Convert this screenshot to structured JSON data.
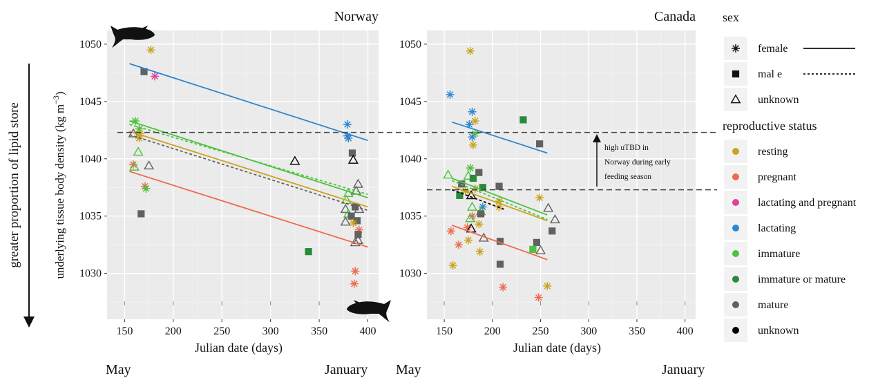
{
  "page": {
    "side_label": "greater proportion of lipid store",
    "ylabel": "underlying tissue body density (kg m",
    "ylabel_sup": "−3",
    "ylabel_close": ")",
    "annotation": [
      "high uTBD in",
      "Norway during early",
      "feeding season"
    ],
    "month_labels": {
      "norway_start": "May",
      "norway_end": "January",
      "canada_start": "May",
      "canada_end": "January"
    }
  },
  "legend": {
    "sex_title": "sex",
    "sex_items": [
      {
        "label": "female",
        "shape": "asterisk",
        "line": "solid"
      },
      {
        "label": "mal e",
        "shape": "square",
        "line": "dotted"
      },
      {
        "label": "unknown",
        "shape": "triangle-open",
        "line": "none"
      }
    ],
    "status_title": "reproductive status",
    "status_items": [
      {
        "label": "resting",
        "color": "#C9A31C"
      },
      {
        "label": "pregnant",
        "color": "#EE6A50"
      },
      {
        "label": "lactating and pregnant",
        "color": "#E2409A"
      },
      {
        "label": "lactating",
        "color": "#2D86D0"
      },
      {
        "label": "immature",
        "color": "#4DC23E"
      },
      {
        "label": "immature or mature",
        "color": "#2A8A3A"
      },
      {
        "label": "mature",
        "color": "#616161"
      },
      {
        "label": "unknown",
        "color": "#000000"
      }
    ]
  },
  "reference_lines": [
    1042.3,
    1037.3
  ],
  "chart_data": [
    {
      "type": "scatter",
      "title": "Norway",
      "xlabel": "Julian date (days)",
      "ylabel": "underlying tissue body density (kg m−3)",
      "xlim": [
        132,
        411
      ],
      "ylim": [
        1026.0,
        1051.2
      ],
      "xticks": [
        150,
        200,
        250,
        300,
        350,
        400
      ],
      "yticks": [
        1030,
        1035,
        1040,
        1045,
        1050
      ],
      "points": [
        {
          "x": 177,
          "y": 1049.5,
          "status": "resting",
          "shape": "asterisk"
        },
        {
          "x": 170,
          "y": 1047.6,
          "status": "mature",
          "shape": "square"
        },
        {
          "x": 181,
          "y": 1047.2,
          "status": "lactating and pregnant",
          "shape": "asterisk"
        },
        {
          "x": 161,
          "y": 1043.3,
          "status": "immature",
          "shape": "asterisk"
        },
        {
          "x": 165,
          "y": 1042.6,
          "status": "immature",
          "shape": "asterisk"
        },
        {
          "x": 166,
          "y": 1042.2,
          "status": "resting",
          "shape": "asterisk"
        },
        {
          "x": 159,
          "y": 1042.2,
          "status": "mature",
          "shape": "triangle-open"
        },
        {
          "x": 165,
          "y": 1041.8,
          "status": "resting",
          "shape": "asterisk"
        },
        {
          "x": 164,
          "y": 1040.6,
          "status": "immature",
          "shape": "triangle-open"
        },
        {
          "x": 159,
          "y": 1039.5,
          "status": "pregnant",
          "shape": "asterisk"
        },
        {
          "x": 160,
          "y": 1039.3,
          "status": "immature",
          "shape": "triangle-open"
        },
        {
          "x": 175,
          "y": 1039.4,
          "status": "mature",
          "shape": "triangle-open"
        },
        {
          "x": 171,
          "y": 1037.6,
          "status": "pregnant",
          "shape": "asterisk"
        },
        {
          "x": 172,
          "y": 1037.4,
          "status": "immature",
          "shape": "asterisk"
        },
        {
          "x": 167,
          "y": 1035.2,
          "status": "mature",
          "shape": "square"
        },
        {
          "x": 325,
          "y": 1039.8,
          "status": "unknown",
          "shape": "triangle-open"
        },
        {
          "x": 339,
          "y": 1031.9,
          "status": "immature or mature",
          "shape": "square"
        },
        {
          "x": 379,
          "y": 1043.0,
          "status": "lactating",
          "shape": "asterisk"
        },
        {
          "x": 379,
          "y": 1042.0,
          "status": "lactating",
          "shape": "asterisk"
        },
        {
          "x": 380,
          "y": 1041.8,
          "status": "lactating",
          "shape": "asterisk"
        },
        {
          "x": 384,
          "y": 1040.5,
          "status": "mature",
          "shape": "square"
        },
        {
          "x": 385,
          "y": 1039.9,
          "status": "unknown",
          "shape": "triangle-open"
        },
        {
          "x": 390,
          "y": 1037.8,
          "status": "mature",
          "shape": "triangle-open"
        },
        {
          "x": 380,
          "y": 1037.0,
          "status": "immature",
          "shape": "triangle-open"
        },
        {
          "x": 388,
          "y": 1037.2,
          "status": "mature",
          "shape": "triangle-open"
        },
        {
          "x": 378,
          "y": 1036.4,
          "status": "immature",
          "shape": "triangle-open"
        },
        {
          "x": 377,
          "y": 1035.6,
          "status": "mature",
          "shape": "triangle-open"
        },
        {
          "x": 380,
          "y": 1035.2,
          "status": "immature",
          "shape": "triangle-open"
        },
        {
          "x": 387,
          "y": 1035.8,
          "status": "mature",
          "shape": "square"
        },
        {
          "x": 391,
          "y": 1035.6,
          "status": "mature",
          "shape": "triangle-open"
        },
        {
          "x": 383,
          "y": 1035.0,
          "status": "mature",
          "shape": "square"
        },
        {
          "x": 389,
          "y": 1034.6,
          "status": "mature",
          "shape": "square"
        },
        {
          "x": 377,
          "y": 1034.5,
          "status": "mature",
          "shape": "triangle-open"
        },
        {
          "x": 385,
          "y": 1034.4,
          "status": "resting",
          "shape": "asterisk"
        },
        {
          "x": 391,
          "y": 1033.8,
          "status": "pregnant",
          "shape": "asterisk"
        },
        {
          "x": 390,
          "y": 1033.4,
          "status": "mature",
          "shape": "square"
        },
        {
          "x": 390,
          "y": 1032.9,
          "status": "mature",
          "shape": "triangle-open"
        },
        {
          "x": 387,
          "y": 1032.7,
          "status": "mature",
          "shape": "triangle-open"
        },
        {
          "x": 387,
          "y": 1030.2,
          "status": "pregnant",
          "shape": "asterisk"
        },
        {
          "x": 386,
          "y": 1029.1,
          "status": "pregnant",
          "shape": "asterisk"
        }
      ],
      "fits": [
        {
          "status": "lactating",
          "sex": "female",
          "x": [
            155,
            400
          ],
          "y": [
            1048.3,
            1041.6
          ]
        },
        {
          "status": "immature",
          "sex": "female",
          "x": [
            155,
            400
          ],
          "y": [
            1043.3,
            1036.6
          ]
        },
        {
          "status": "immature",
          "sex": "male",
          "x": [
            155,
            400
          ],
          "y": [
            1043.0,
            1036.9
          ]
        },
        {
          "status": "resting",
          "sex": "female",
          "x": [
            155,
            400
          ],
          "y": [
            1042.4,
            1035.8
          ]
        },
        {
          "status": "mature",
          "sex": "male",
          "x": [
            155,
            400
          ],
          "y": [
            1042.1,
            1035.5
          ]
        },
        {
          "status": "pregnant",
          "sex": "female",
          "x": [
            155,
            400
          ],
          "y": [
            1038.9,
            1032.3
          ]
        }
      ]
    },
    {
      "type": "scatter",
      "title": "Canada",
      "xlabel": "Julian date (days)",
      "xlim": [
        132,
        411
      ],
      "ylim": [
        1026.0,
        1051.2
      ],
      "xticks": [
        150,
        200,
        250,
        300,
        350,
        400
      ],
      "yticks": [
        1030,
        1035,
        1040,
        1045,
        1050
      ],
      "points": [
        {
          "x": 177,
          "y": 1049.4,
          "status": "resting",
          "shape": "asterisk"
        },
        {
          "x": 156,
          "y": 1045.6,
          "status": "lactating",
          "shape": "asterisk"
        },
        {
          "x": 179,
          "y": 1044.1,
          "status": "lactating",
          "shape": "asterisk"
        },
        {
          "x": 232,
          "y": 1043.4,
          "status": "immature or mature",
          "shape": "square"
        },
        {
          "x": 182,
          "y": 1043.3,
          "status": "resting",
          "shape": "asterisk"
        },
        {
          "x": 176,
          "y": 1043.0,
          "status": "lactating",
          "shape": "asterisk"
        },
        {
          "x": 182,
          "y": 1042.2,
          "status": "immature",
          "shape": "asterisk"
        },
        {
          "x": 179,
          "y": 1041.9,
          "status": "lactating",
          "shape": "asterisk"
        },
        {
          "x": 249,
          "y": 1041.3,
          "status": "mature",
          "shape": "square"
        },
        {
          "x": 180,
          "y": 1041.2,
          "status": "resting",
          "shape": "asterisk"
        },
        {
          "x": 177,
          "y": 1039.2,
          "status": "immature",
          "shape": "asterisk"
        },
        {
          "x": 154,
          "y": 1038.6,
          "status": "immature",
          "shape": "triangle-open"
        },
        {
          "x": 175,
          "y": 1038.5,
          "status": "immature",
          "shape": "triangle-open"
        },
        {
          "x": 186,
          "y": 1038.8,
          "status": "mature",
          "shape": "square"
        },
        {
          "x": 180,
          "y": 1038.3,
          "status": "immature or mature",
          "shape": "square"
        },
        {
          "x": 207,
          "y": 1037.6,
          "status": "mature",
          "shape": "square"
        },
        {
          "x": 168,
          "y": 1037.8,
          "status": "mature",
          "shape": "square"
        },
        {
          "x": 182,
          "y": 1037.4,
          "status": "resting",
          "shape": "asterisk"
        },
        {
          "x": 190,
          "y": 1037.5,
          "status": "immature or mature",
          "shape": "square"
        },
        {
          "x": 172,
          "y": 1037.2,
          "status": "resting",
          "shape": "asterisk"
        },
        {
          "x": 178,
          "y": 1036.8,
          "status": "unknown",
          "shape": "triangle-open"
        },
        {
          "x": 166,
          "y": 1036.8,
          "status": "immature or mature",
          "shape": "square"
        },
        {
          "x": 249,
          "y": 1036.6,
          "status": "resting",
          "shape": "asterisk"
        },
        {
          "x": 207,
          "y": 1036.3,
          "status": "resting",
          "shape": "asterisk"
        },
        {
          "x": 179,
          "y": 1035.8,
          "status": "immature",
          "shape": "triangle-open"
        },
        {
          "x": 207,
          "y": 1035.8,
          "status": "resting",
          "shape": "asterisk"
        },
        {
          "x": 190,
          "y": 1035.8,
          "status": "lactating",
          "shape": "asterisk"
        },
        {
          "x": 258,
          "y": 1035.7,
          "status": "mature",
          "shape": "triangle-open"
        },
        {
          "x": 188,
          "y": 1035.4,
          "status": "immature",
          "shape": "triangle-open"
        },
        {
          "x": 188,
          "y": 1035.2,
          "status": "mature",
          "shape": "square"
        },
        {
          "x": 179,
          "y": 1035.0,
          "status": "pregnant",
          "shape": "asterisk"
        },
        {
          "x": 177,
          "y": 1034.8,
          "status": "immature",
          "shape": "triangle-open"
        },
        {
          "x": 265,
          "y": 1034.7,
          "status": "mature",
          "shape": "triangle-open"
        },
        {
          "x": 186,
          "y": 1034.3,
          "status": "resting",
          "shape": "asterisk"
        },
        {
          "x": 174,
          "y": 1034.0,
          "status": "pregnant",
          "shape": "asterisk"
        },
        {
          "x": 178,
          "y": 1033.9,
          "status": "unknown",
          "shape": "triangle-open"
        },
        {
          "x": 157,
          "y": 1033.7,
          "status": "pregnant",
          "shape": "asterisk"
        },
        {
          "x": 262,
          "y": 1033.7,
          "status": "mature",
          "shape": "square"
        },
        {
          "x": 191,
          "y": 1033.1,
          "status": "mature",
          "shape": "triangle-open"
        },
        {
          "x": 175,
          "y": 1032.9,
          "status": "resting",
          "shape": "asterisk"
        },
        {
          "x": 208,
          "y": 1032.8,
          "status": "mature",
          "shape": "square"
        },
        {
          "x": 246,
          "y": 1032.7,
          "status": "mature",
          "shape": "square"
        },
        {
          "x": 165,
          "y": 1032.5,
          "status": "pregnant",
          "shape": "asterisk"
        },
        {
          "x": 242,
          "y": 1032.1,
          "status": "immature",
          "shape": "square"
        },
        {
          "x": 250,
          "y": 1032.0,
          "status": "mature",
          "shape": "triangle-open"
        },
        {
          "x": 187,
          "y": 1031.9,
          "status": "resting",
          "shape": "asterisk"
        },
        {
          "x": 208,
          "y": 1030.8,
          "status": "mature",
          "shape": "square"
        },
        {
          "x": 159,
          "y": 1030.7,
          "status": "resting",
          "shape": "asterisk"
        },
        {
          "x": 257,
          "y": 1028.9,
          "status": "resting",
          "shape": "asterisk"
        },
        {
          "x": 211,
          "y": 1028.8,
          "status": "pregnant",
          "shape": "asterisk"
        },
        {
          "x": 248,
          "y": 1027.9,
          "status": "pregnant",
          "shape": "asterisk"
        }
      ],
      "fits": [
        {
          "status": "lactating",
          "sex": "female",
          "x": [
            158,
            257
          ],
          "y": [
            1043.2,
            1040.5
          ]
        },
        {
          "status": "immature",
          "sex": "female",
          "x": [
            158,
            257
          ],
          "y": [
            1038.3,
            1035.1
          ]
        },
        {
          "status": "immature",
          "sex": "male",
          "x": [
            158,
            257
          ],
          "y": [
            1038.1,
            1034.7
          ]
        },
        {
          "status": "resting",
          "sex": "female",
          "x": [
            158,
            257
          ],
          "y": [
            1037.6,
            1034.6
          ]
        },
        {
          "status": "unknown",
          "sex": "male",
          "x": [
            158,
            212
          ],
          "y": [
            1037.3,
            1035.6
          ]
        },
        {
          "status": "pregnant",
          "sex": "female",
          "x": [
            158,
            257
          ],
          "y": [
            1034.2,
            1031.2
          ]
        }
      ]
    }
  ]
}
